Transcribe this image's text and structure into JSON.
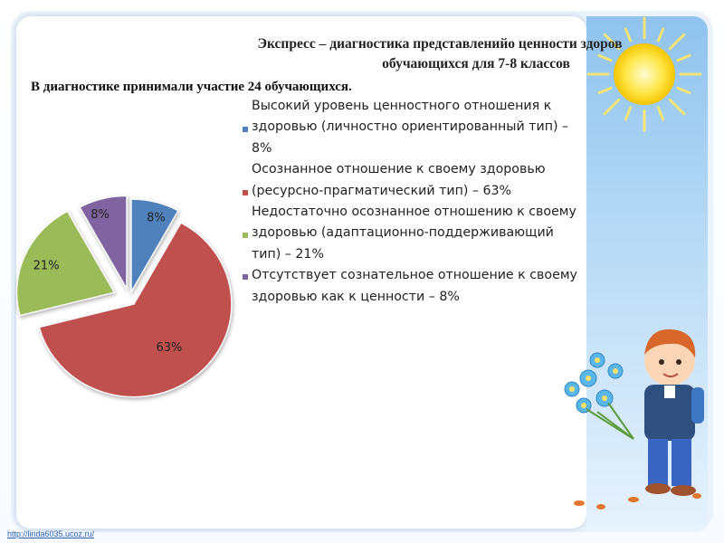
{
  "title_line1": "Экспресс – диагностика представленийо ценности здоров",
  "title_line2": "обучающихся для 7-8 классов",
  "intro": "В диагностике принимали участие 24 обучающихся.",
  "footer_link": "http://linda6035.ucoz.ru/",
  "chart_data": {
    "type": "pie",
    "categories": [
      "Высокий уровень ценностного отношения к здоровью (личностно ориентированный тип) – 8%",
      "Осознанное отношение к своему здоровью (ресурсно-прагматический тип) – 63%",
      "Недостаточно осознанное отношению к своему здоровью (адаптационно-поддерживающий тип) – 21%",
      "Отсутствует сознательное отношение к своему здоровью как к ценности – 8%"
    ],
    "values": [
      8,
      63,
      21,
      8
    ],
    "data_labels": [
      "8%",
      "63%",
      "21%",
      "8%"
    ],
    "colors": [
      "#4f81bd",
      "#c0504d",
      "#9bbb59",
      "#8064a2"
    ],
    "exploded": true,
    "legend_position": "right"
  }
}
